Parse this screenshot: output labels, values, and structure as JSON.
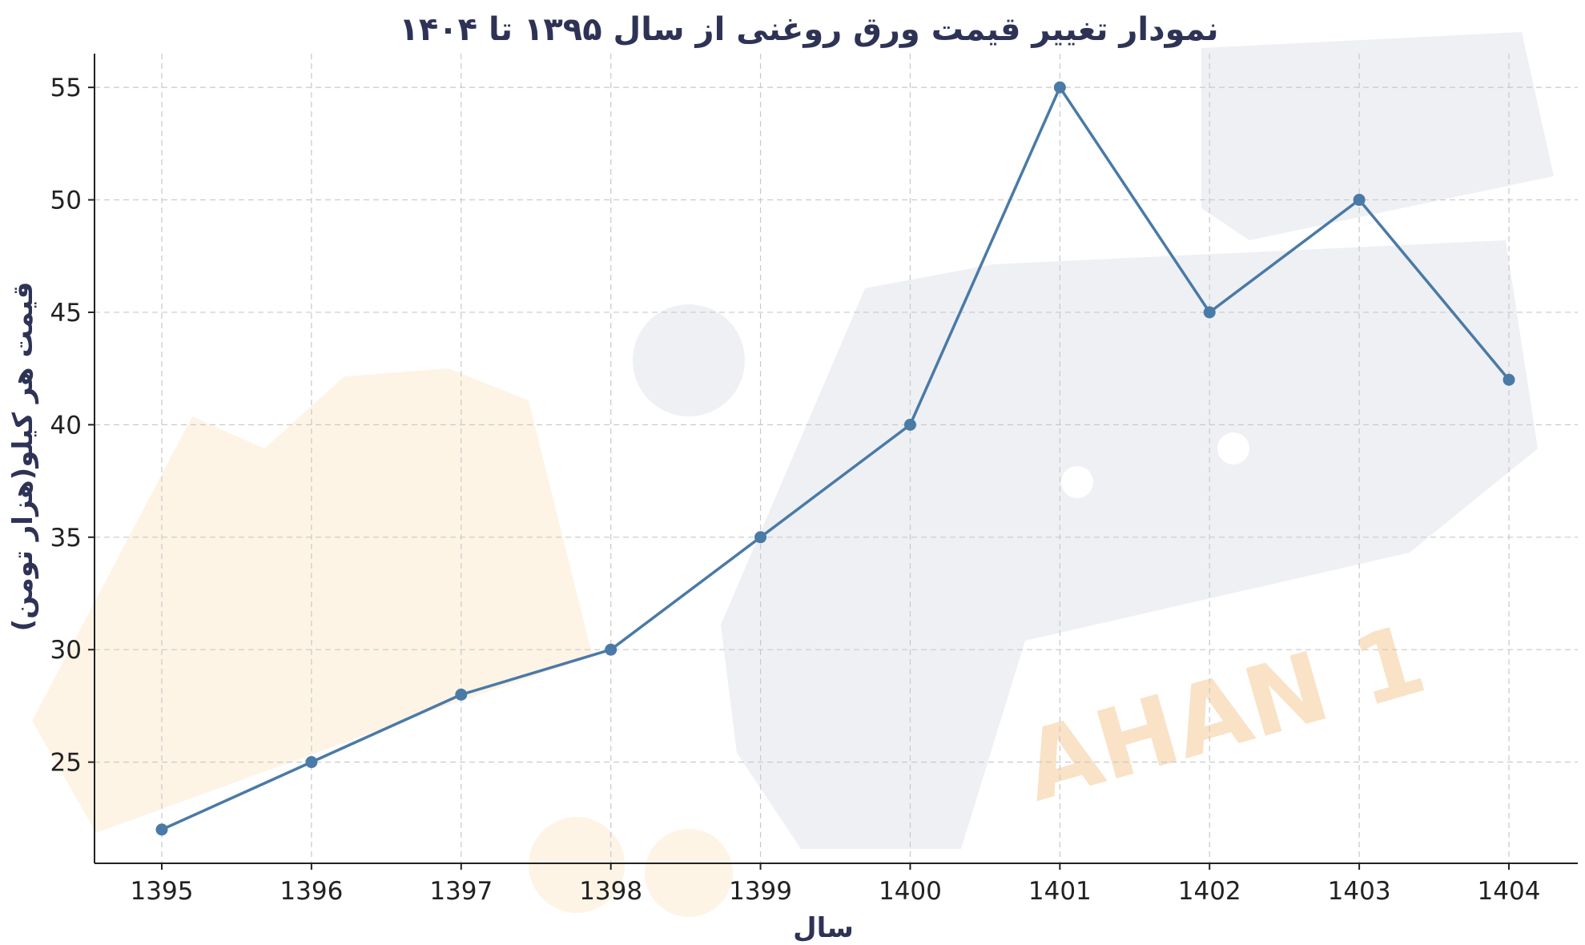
{
  "chart_data": {
    "type": "line",
    "title": "نمودار تغییر قیمت ورق روغنی از سال ۱۳۹۵ تا ۱۴۰۴",
    "xlabel": "سال",
    "ylabel": "قیمت هر کیلو(هزار تومن)",
    "categories": [
      "1395",
      "1396",
      "1397",
      "1398",
      "1399",
      "1400",
      "1401",
      "1402",
      "1403",
      "1404"
    ],
    "values": [
      22,
      25,
      28,
      30,
      35,
      40,
      55,
      45,
      50,
      42
    ],
    "ylim": [
      20.5,
      56.5
    ],
    "yticks": [
      "25",
      "30",
      "35",
      "40",
      "45",
      "50",
      "55"
    ],
    "grid": true,
    "line_color": "#4a7aa6",
    "watermark_text": "AHAN 1"
  }
}
